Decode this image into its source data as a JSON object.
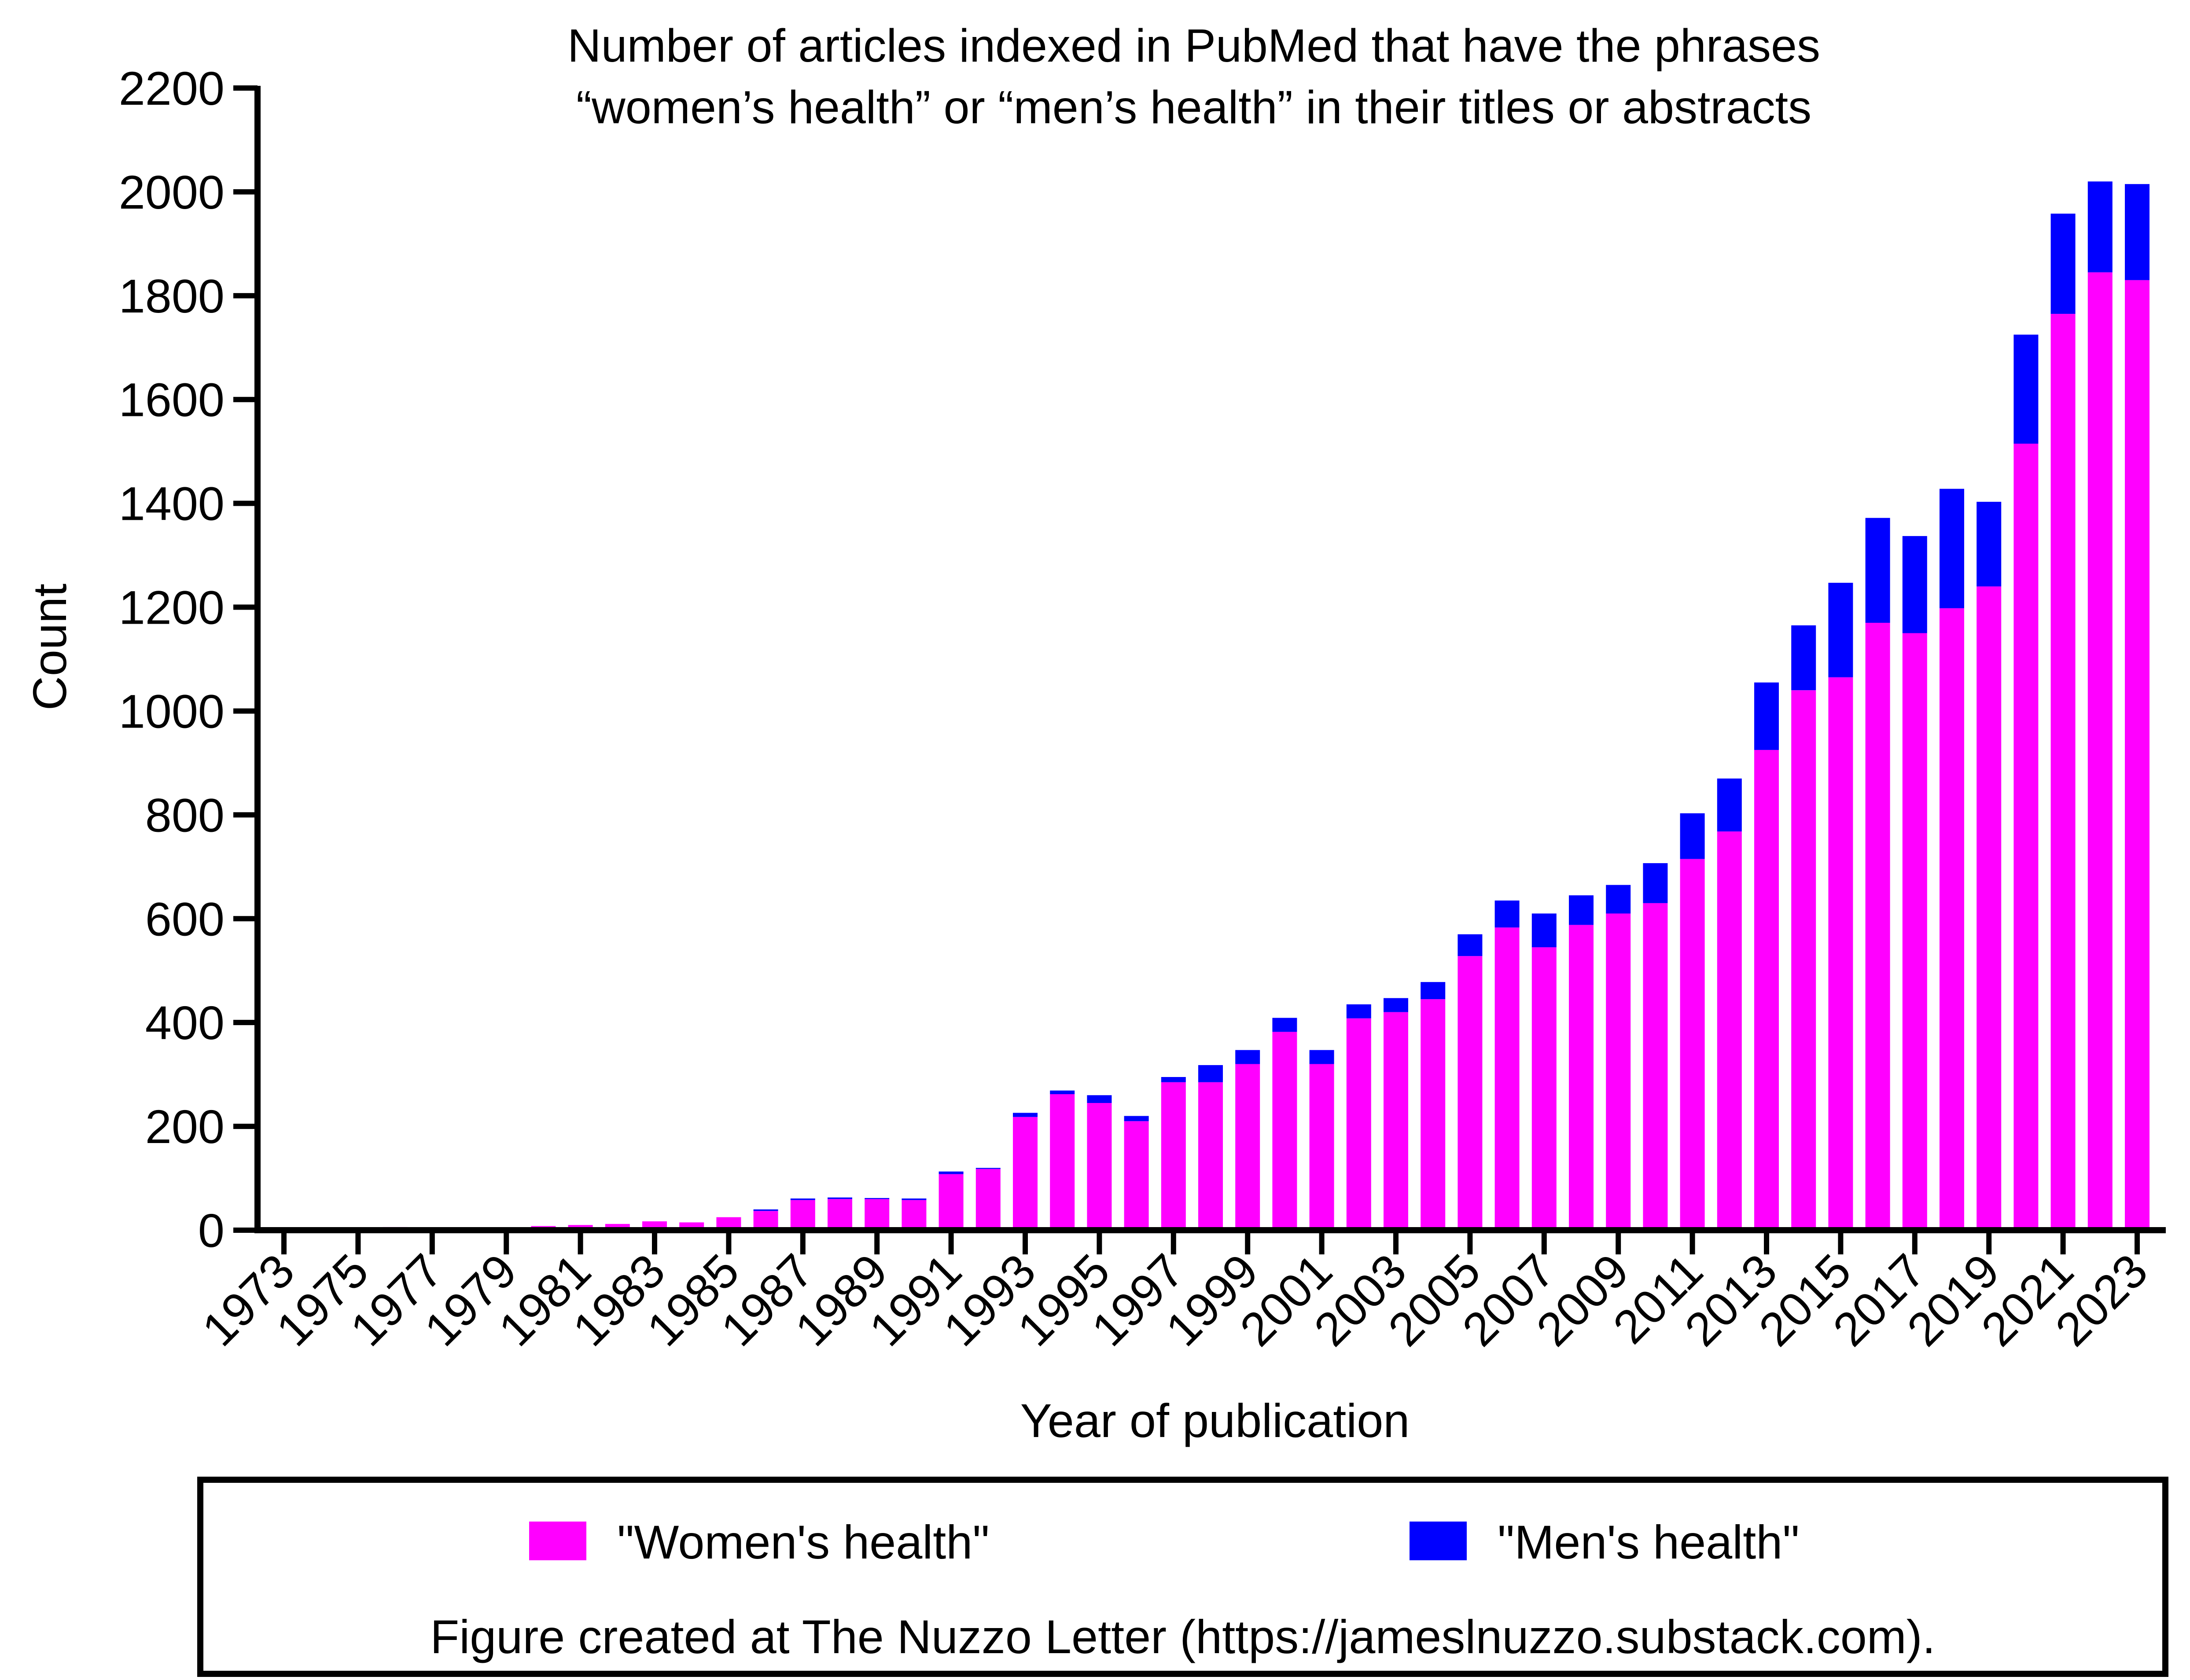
{
  "chart_data": {
    "type": "bar",
    "stacked": true,
    "title": "Number of articles indexed in PubMed that have the phrases",
    "subtitle": "“women’s health” or “men’s health” in their titles or abstracts",
    "xlabel": "Year of publication",
    "ylabel": "Count",
    "ylim": [
      0,
      2200
    ],
    "yticks": [
      "0",
      "200",
      "400",
      "600",
      "800",
      "1000",
      "1200",
      "1400",
      "1600",
      "1800",
      "2000",
      "2200"
    ],
    "categories": [
      "1973",
      "1974",
      "1975",
      "1976",
      "1977",
      "1978",
      "1979",
      "1980",
      "1981",
      "1982",
      "1983",
      "1984",
      "1985",
      "1986",
      "1987",
      "1988",
      "1989",
      "1990",
      "1991",
      "1992",
      "1993",
      "1994",
      "1995",
      "1996",
      "1997",
      "1998",
      "1999",
      "2000",
      "2001",
      "2002",
      "2003",
      "2004",
      "2005",
      "2006",
      "2007",
      "2008",
      "2009",
      "2010",
      "2011",
      "2012",
      "2013",
      "2014",
      "2015",
      "2016",
      "2017",
      "2018",
      "2019",
      "2020",
      "2021",
      "2022",
      "2023"
    ],
    "xtick_labels": [
      "1973",
      "1975",
      "1977",
      "1979",
      "1981",
      "1983",
      "1985",
      "1987",
      "1989",
      "1991",
      "1993",
      "1995",
      "1997",
      "1999",
      "2001",
      "2003",
      "2005",
      "2007",
      "2009",
      "2011",
      "2013",
      "2015",
      "2017",
      "2019",
      "2021",
      "2023"
    ],
    "series": [
      {
        "name": "\"Women's health\"",
        "color": "#ff00ff",
        "values": [
          1,
          1,
          4,
          6,
          2,
          3,
          5,
          8,
          10,
          12,
          17,
          15,
          25,
          37,
          58,
          60,
          60,
          58,
          108,
          118,
          218,
          262,
          245,
          210,
          285,
          285,
          320,
          382,
          320,
          408,
          420,
          445,
          528,
          583,
          545,
          588,
          610,
          630,
          715,
          768,
          925,
          1040,
          1065,
          1170,
          1150,
          1198,
          1240,
          1515,
          1765,
          1845,
          1830
        ]
      },
      {
        "name": "\"Men's health\"",
        "color": "#0000ff",
        "values": [
          0,
          0,
          0,
          0,
          0,
          0,
          0,
          0,
          0,
          0,
          0,
          0,
          0,
          3,
          3,
          3,
          2,
          3,
          5,
          2,
          8,
          7,
          15,
          10,
          10,
          33,
          27,
          27,
          27,
          27,
          27,
          33,
          42,
          52,
          65,
          57,
          55,
          77,
          88,
          102,
          130,
          125,
          182,
          202,
          187,
          230,
          163,
          210,
          193,
          175,
          185
        ]
      }
    ],
    "legend": {
      "placement": "bottom",
      "note": "Figure created at The Nuzzo Letter (https://jameslnuzzo.substack.com)."
    }
  }
}
